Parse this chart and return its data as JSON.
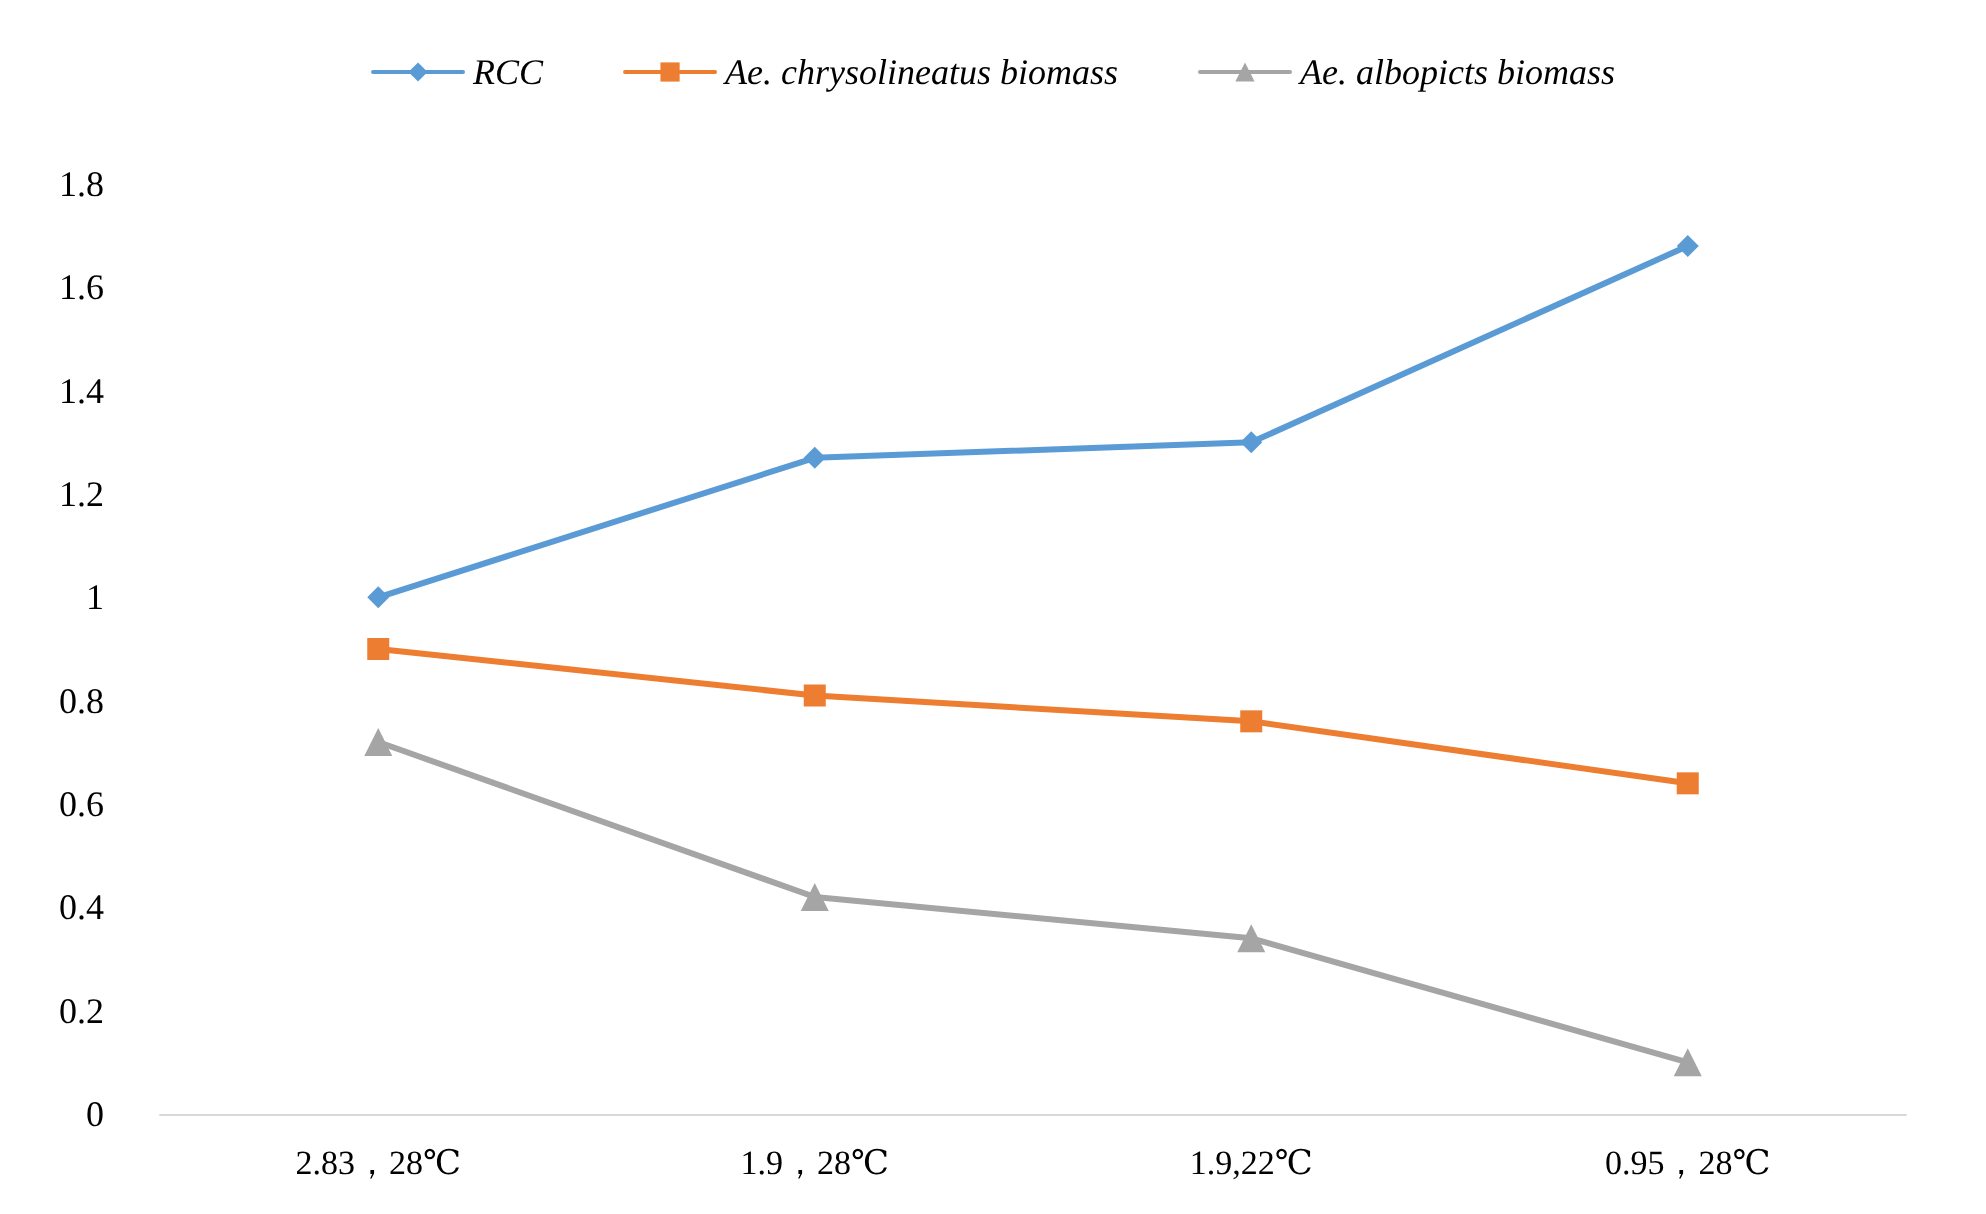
{
  "chart_data": {
    "type": "line",
    "categories": [
      "2.83，28℃",
      "1.9，28℃",
      "1.9,22℃",
      "0.95，28℃"
    ],
    "series": [
      {
        "name": "RCC",
        "color": "#5b9bd5",
        "marker": "diamond",
        "values": [
          1.0,
          1.27,
          1.3,
          1.68
        ]
      },
      {
        "name": "Ae. chrysolineatus biomass",
        "color": "#ed7d31",
        "marker": "square",
        "values": [
          0.9,
          0.81,
          0.76,
          0.64
        ]
      },
      {
        "name": "Ae. albopicts biomass",
        "color": "#a5a5a5",
        "marker": "triangle",
        "values": [
          0.72,
          0.42,
          0.34,
          0.1
        ]
      }
    ],
    "ylim": [
      0,
      1.8
    ],
    "yticks": [
      0,
      0.2,
      0.4,
      0.6,
      0.8,
      1,
      1.2,
      1.4,
      1.6,
      1.8
    ],
    "grid": false,
    "legend": "top",
    "line_style": "solid"
  }
}
